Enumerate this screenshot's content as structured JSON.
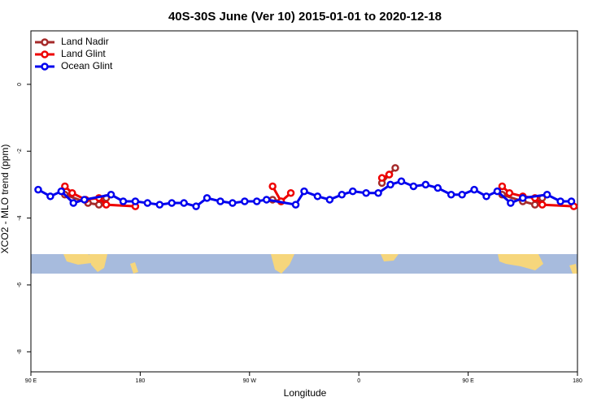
{
  "chart_data": {
    "type": "line",
    "title": "40S-30S June (Ver 10)   2015-01-01 to 2020-12-18",
    "x_label": "Longitude",
    "y_label": "XCO2 - MLO trend (ppm)",
    "xlim": [
      90,
      540
    ],
    "xticks": [
      {
        "value": 90,
        "label": "90 E"
      },
      180,
      {
        "value": 270,
        "label": "90 W"
      },
      {
        "value": 360,
        "label": "0"
      },
      {
        "value": 450,
        "label": "90 E"
      },
      {
        "value": 540,
        "label": "180"
      }
    ],
    "ylim": [
      -8.6,
      1.6
    ],
    "yticks": [
      0,
      -2,
      -4,
      -6,
      -8
    ],
    "legend": "top-left",
    "series": [
      {
        "name": "Land Nadir",
        "color": "#a52a2a",
        "x": [
          118,
          137,
          146,
          152,
          null,
          289,
          296,
          null,
          379,
          385,
          390,
          null,
          478,
          495,
          505,
          511
        ],
        "values": [
          -3.3,
          -3.55,
          -3.6,
          -3.4,
          null,
          -3.45,
          -3.5,
          null,
          -2.95,
          -2.7,
          -2.5,
          null,
          -3.3,
          -3.5,
          -3.6,
          -3.4
        ]
      },
      {
        "name": "Land Glint",
        "color": "#ee0000",
        "x": [
          118,
          124,
          135,
          146,
          152,
          176,
          null,
          289,
          296,
          304,
          null,
          379,
          385,
          null,
          478,
          484,
          495,
          505,
          511,
          537
        ],
        "values": [
          -3.05,
          -3.25,
          -3.45,
          -3.4,
          -3.6,
          -3.65,
          null,
          -3.05,
          -3.5,
          -3.25,
          null,
          -2.8,
          -2.7,
          null,
          -3.05,
          -3.25,
          -3.35,
          -3.4,
          -3.6,
          -3.65
        ]
      },
      {
        "name": "Ocean Glint",
        "color": "#0000ee",
        "x": [
          96,
          106,
          115,
          125,
          134,
          156,
          166,
          176,
          186,
          196,
          206,
          216,
          226,
          235,
          246,
          256,
          266,
          276,
          284,
          308,
          315,
          326,
          336,
          346,
          355,
          366,
          376,
          386,
          395,
          405,
          415,
          425,
          436,
          445,
          455,
          465,
          474,
          485,
          495,
          515,
          526,
          535
        ],
        "values": [
          -3.15,
          -3.35,
          -3.2,
          -3.55,
          -3.45,
          -3.3,
          -3.5,
          -3.5,
          -3.55,
          -3.6,
          -3.55,
          -3.55,
          -3.65,
          -3.4,
          -3.5,
          -3.55,
          -3.5,
          -3.5,
          -3.45,
          -3.6,
          -3.2,
          -3.35,
          -3.45,
          -3.3,
          -3.2,
          -3.25,
          -3.25,
          -3.0,
          -2.9,
          -3.05,
          -3.0,
          -3.1,
          -3.3,
          -3.3,
          -3.15,
          -3.35,
          -3.2,
          -3.55,
          -3.4,
          -3.3,
          -3.5,
          -3.5
        ]
      }
    ]
  }
}
